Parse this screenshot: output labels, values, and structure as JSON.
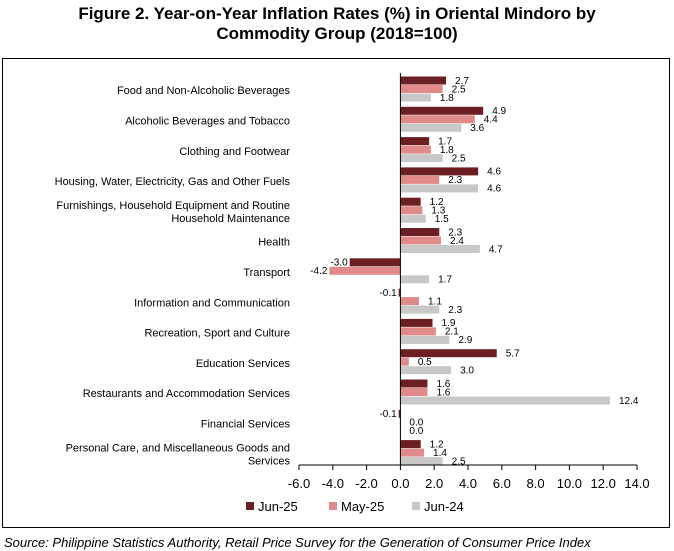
{
  "title_line1": "Figure 2. Year-on-Year Inflation Rates (%) in Oriental Mindoro by",
  "title_line2": "Commodity Group (2018=100)",
  "source": "Source: Philippine Statistics Authority, Retail Price Survey for the Generation of Consumer Price Index",
  "chart_data": {
    "type": "bar",
    "orientation": "horizontal",
    "categories": [
      [
        "Food and Non-Alcoholic Beverages"
      ],
      [
        "Alcoholic Beverages and Tobacco"
      ],
      [
        "Clothing and Footwear"
      ],
      [
        "Housing, Water, Electricity, Gas and Other Fuels"
      ],
      [
        "Furnishings, Household Equipment and Routine",
        "Household Maintenance"
      ],
      [
        "Health"
      ],
      [
        "Transport"
      ],
      [
        "Information and Communication"
      ],
      [
        "Recreation, Sport and Culture"
      ],
      [
        "Education Services"
      ],
      [
        "Restaurants and Accommodation Services"
      ],
      [
        "Financial Services"
      ],
      [
        "Personal Care, and Miscellaneous Goods and",
        "Services"
      ]
    ],
    "series": [
      {
        "name": "Jun-25",
        "color": "#6b1f22",
        "values": [
          2.7,
          4.9,
          1.7,
          4.6,
          1.2,
          2.3,
          -3.0,
          -0.1,
          1.9,
          5.7,
          1.6,
          -0.1,
          1.2
        ],
        "labels": [
          "2.7",
          "4.9",
          "1.7",
          "4.6",
          "1.2",
          "2.3",
          "-3.0",
          "-0.1",
          "1.9",
          "5.7",
          "1.6",
          "-0.1",
          "1.2"
        ]
      },
      {
        "name": "May-25",
        "color": "#e08a8a",
        "values": [
          2.5,
          4.4,
          1.8,
          2.3,
          1.3,
          2.4,
          -4.2,
          1.1,
          2.1,
          0.5,
          1.6,
          0.0,
          1.4
        ],
        "labels": [
          "2.5",
          "4.4",
          "1.8",
          "2.3",
          "1.3",
          "2.4",
          "-4.2",
          "1.1",
          "2.1",
          "0.5",
          "1.6",
          "0.0",
          "1.4"
        ]
      },
      {
        "name": "Jun-24",
        "color": "#c8c8c8",
        "values": [
          1.8,
          3.6,
          2.5,
          4.6,
          1.5,
          4.7,
          1.7,
          2.3,
          2.9,
          3.0,
          12.4,
          0.0,
          2.5
        ],
        "labels": [
          "1.8",
          "3.6",
          "2.5",
          "4.6",
          "1.5",
          "4.7",
          "1.7",
          "2.3",
          "2.9",
          "3.0",
          "12.4",
          "0.0",
          "2.5"
        ]
      }
    ],
    "xlim": [
      -6.0,
      14.0
    ],
    "xticks": [
      "-6.0",
      "-4.0",
      "-2.0",
      "0.0",
      "2.0",
      "4.0",
      "6.0",
      "8.0",
      "10.0",
      "12.0",
      "14.0"
    ],
    "xtick_values": [
      -6,
      -4,
      -2,
      0,
      2,
      4,
      6,
      8,
      10,
      12,
      14
    ],
    "grid": false,
    "legend_position": "bottom-left"
  }
}
